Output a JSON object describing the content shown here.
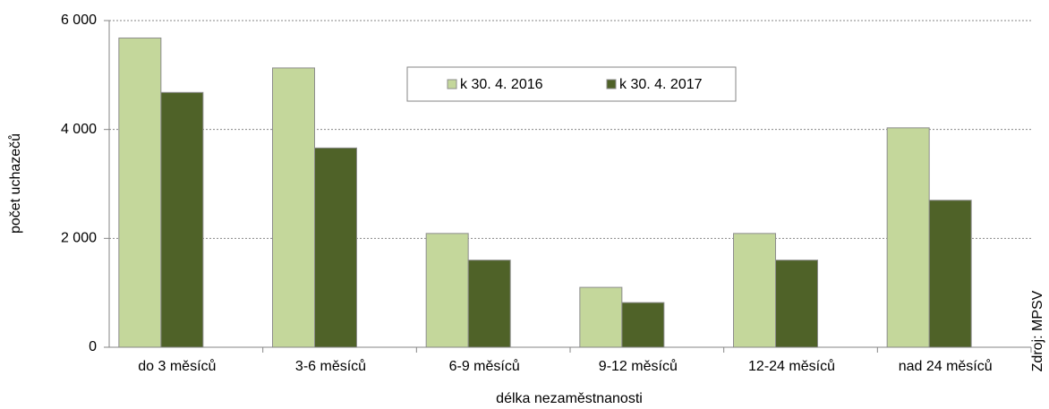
{
  "chart_data": {
    "type": "bar",
    "x_label": "délka nezaměstnanosti",
    "y_label": "počet uchazečů",
    "source": "Zdroj: MPSV",
    "categories": [
      "do 3 měsíců",
      "3-6 měsíců",
      "6-9 měsíců",
      "9-12 měsíců",
      "12-24 měsíců",
      "nad 24 měsíců"
    ],
    "series": [
      {
        "name": "k 30. 4. 2016",
        "color": "#c4d79b",
        "values": [
          5680,
          5130,
          2090,
          1100,
          2090,
          4030
        ]
      },
      {
        "name": "k 30. 4. 2017",
        "color": "#4f6228",
        "values": [
          4680,
          3660,
          1600,
          820,
          1600,
          2700
        ]
      }
    ],
    "ylim": [
      0,
      6000
    ],
    "yticks": [
      0,
      {
        "value": 2000,
        "label": "2 000"
      },
      {
        "value": 4000,
        "label": "4 000"
      },
      {
        "value": 6000,
        "label": "6 000"
      }
    ],
    "grid": true,
    "legend": "top"
  }
}
